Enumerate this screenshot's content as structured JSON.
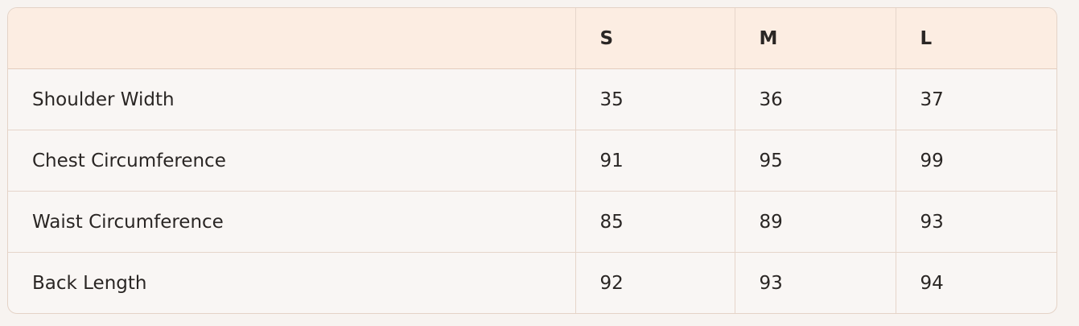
{
  "table": {
    "headers": [
      "",
      "S",
      "M",
      "L"
    ],
    "rows": [
      {
        "label": "Shoulder Width",
        "values": [
          "35",
          "36",
          "37"
        ]
      },
      {
        "label": "Chest Circumference",
        "values": [
          "91",
          "95",
          "99"
        ]
      },
      {
        "label": "Waist Circumference",
        "values": [
          "85",
          "89",
          "93"
        ]
      },
      {
        "label": "Back Length",
        "values": [
          "92",
          "93",
          "94"
        ]
      }
    ]
  },
  "colors": {
    "header_bg": "#fcede2",
    "body_bg": "#f9f6f4",
    "border": "#e6d5ca"
  }
}
